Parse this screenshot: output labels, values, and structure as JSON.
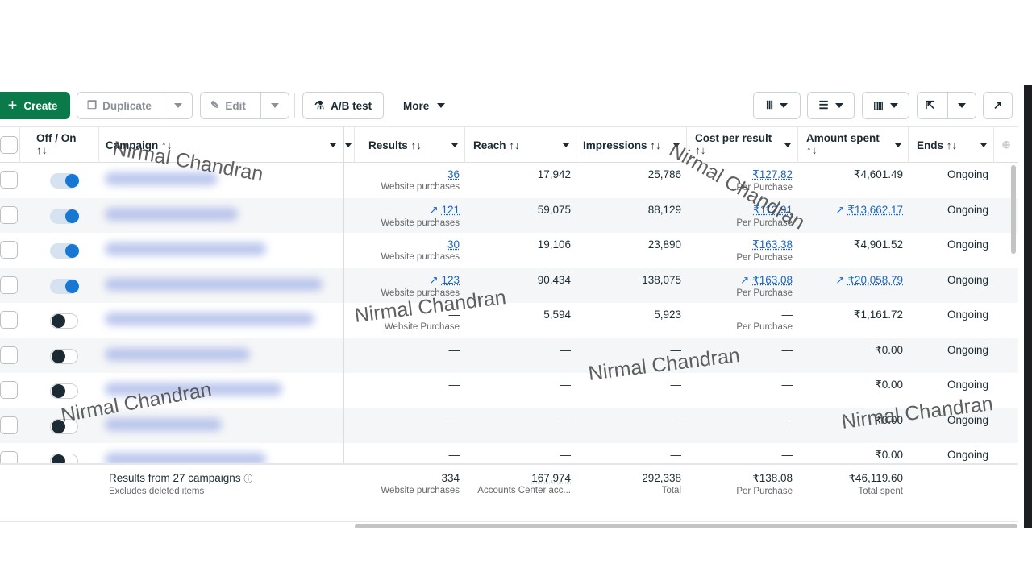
{
  "toolbar": {
    "create": "Create",
    "duplicate": "Duplicate",
    "edit": "Edit",
    "ab_test": "A/B test",
    "more": "More"
  },
  "columns": {
    "off_on": "Off / On",
    "campaign": "Campaign",
    "results": "Results",
    "reach": "Reach",
    "impressions": "Impressions",
    "cost_per_result": "Cost per result",
    "amount_spent": "Amount spent",
    "ends": "Ends",
    "sort_icon": "↑↓"
  },
  "rows": [
    {
      "on": true,
      "results": "36",
      "results_sub": "Website purchases",
      "results_trend": false,
      "reach": "17,942",
      "impressions": "25,786",
      "cost": "₹127.82",
      "cost_sub": "Per Purchase",
      "cost_trend": false,
      "amount": "₹4,601.49",
      "amount_trend": false,
      "ends": "Ongoing"
    },
    {
      "on": true,
      "results": "121",
      "results_sub": "Website purchases",
      "results_trend": true,
      "reach": "59,075",
      "impressions": "88,129",
      "cost": "₹112.91",
      "cost_sub": "Per Purchase",
      "cost_trend": false,
      "amount": "₹13,662.17",
      "amount_trend": true,
      "ends": "Ongoing"
    },
    {
      "on": true,
      "results": "30",
      "results_sub": "Website purchases",
      "results_trend": false,
      "reach": "19,106",
      "impressions": "23,890",
      "cost": "₹163.38",
      "cost_sub": "Per Purchase",
      "cost_trend": false,
      "amount": "₹4,901.52",
      "amount_trend": false,
      "ends": "Ongoing"
    },
    {
      "on": true,
      "results": "123",
      "results_sub": "Website purchases",
      "results_trend": true,
      "reach": "90,434",
      "impressions": "138,075",
      "cost": "₹163.08",
      "cost_sub": "Per Purchase",
      "cost_trend": true,
      "amount": "₹20,058.79",
      "amount_trend": true,
      "ends": "Ongoing"
    },
    {
      "on": false,
      "results": "—",
      "results_sub": "Website Purchase",
      "results_trend": false,
      "reach": "5,594",
      "impressions": "5,923",
      "cost": "—",
      "cost_sub": "Per Purchase",
      "cost_trend": false,
      "amount": "₹1,161.72",
      "amount_trend": false,
      "ends": "Ongoing"
    },
    {
      "on": false,
      "results": "—",
      "results_sub": "",
      "results_trend": false,
      "reach": "—",
      "impressions": "—",
      "cost": "—",
      "cost_sub": "",
      "cost_trend": false,
      "amount": "₹0.00",
      "amount_trend": false,
      "ends": "Ongoing"
    },
    {
      "on": false,
      "results": "—",
      "results_sub": "",
      "results_trend": false,
      "reach": "—",
      "impressions": "—",
      "cost": "—",
      "cost_sub": "",
      "cost_trend": false,
      "amount": "₹0.00",
      "amount_trend": false,
      "ends": "Ongoing"
    },
    {
      "on": false,
      "results": "—",
      "results_sub": "",
      "results_trend": false,
      "reach": "—",
      "impressions": "—",
      "cost": "—",
      "cost_sub": "",
      "cost_trend": false,
      "amount": "₹0.00",
      "amount_trend": false,
      "ends": "Ongoing"
    },
    {
      "on": false,
      "results": "—",
      "results_sub": "",
      "results_trend": false,
      "reach": "—",
      "impressions": "—",
      "cost": "—",
      "cost_sub": "",
      "cost_trend": false,
      "amount": "₹0.00",
      "amount_trend": false,
      "ends": "Ongoing"
    }
  ],
  "footer": {
    "title": "Results from 27 campaigns",
    "subtitle": "Excludes deleted items",
    "results": "334",
    "results_sub": "Website purchases",
    "reach": "167,974",
    "reach_sub": "Accounts Center acc...",
    "impressions": "292,338",
    "impressions_sub": "Total",
    "cost": "₹138.08",
    "cost_sub": "Per Purchase",
    "amount": "₹46,119.60",
    "amount_sub": "Total spent"
  },
  "watermark": "Nirmal Chandran",
  "colors": {
    "create": "#0a7a4b",
    "toggle_on": "#1877d2",
    "link": "#1a66c2"
  }
}
